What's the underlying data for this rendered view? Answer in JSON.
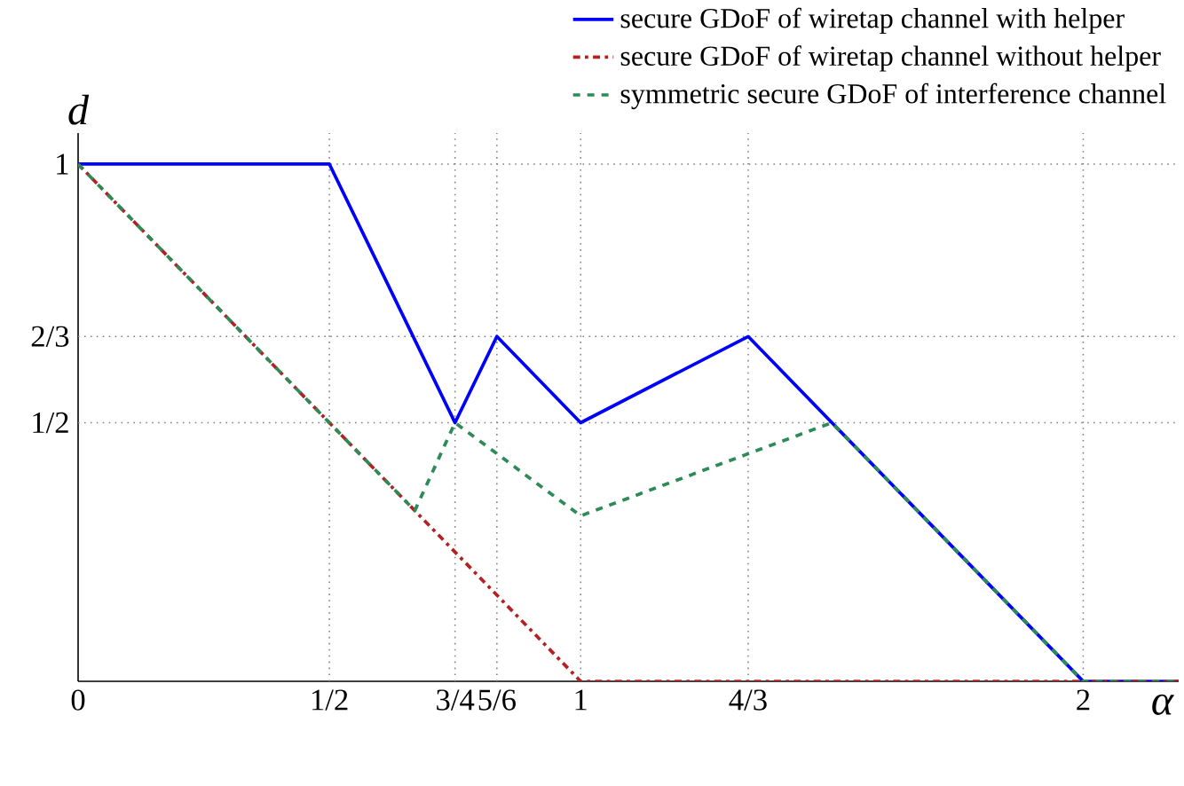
{
  "chart_data": {
    "type": "line",
    "xlabel": "α",
    "ylabel": "d",
    "xlim": [
      0,
      2.19
    ],
    "ylim": [
      0,
      1.06
    ],
    "xticks": [
      0,
      {
        "value": 0.5,
        "label": "1/2"
      },
      {
        "value": 0.75,
        "label": "3/4"
      },
      {
        "value": 0.8333,
        "label": "5/6"
      },
      1,
      {
        "value": 1.3333,
        "label": "4/3"
      },
      2
    ],
    "yticks": [
      {
        "value": 0.5,
        "label": "1/2"
      },
      {
        "value": 0.6667,
        "label": "2/3"
      },
      1
    ],
    "series": [
      {
        "name": "secure GDoF of wiretap channel with helper",
        "color": "#0000ff",
        "line_style": "solid",
        "x": [
          0,
          0.5,
          0.75,
          0.8333,
          1,
          1.3333,
          2,
          2.19
        ],
        "values": [
          1,
          1,
          0.5,
          0.6667,
          0.5,
          0.6667,
          0,
          0
        ]
      },
      {
        "name": "secure GDoF of wiretap channel without helper",
        "color": "#b22222",
        "line_style": "dashdot",
        "x": [
          0,
          1,
          2.19
        ],
        "values": [
          1,
          0,
          0
        ]
      },
      {
        "name": "symmetric secure GDoF of interference channel",
        "color": "#2e8b57",
        "line_style": "dashed",
        "x": [
          0,
          0.67,
          0.75,
          1,
          1.5,
          2,
          2.19
        ],
        "values": [
          1,
          0.33,
          0.5,
          0.32,
          0.5,
          0,
          0
        ]
      }
    ],
    "ref_lines": [
      {
        "axis": "y",
        "value": 1,
        "color": "#808080",
        "line_style": "dotted"
      },
      {
        "axis": "y",
        "value": 0.6667,
        "color": "#808080",
        "line_style": "dotted"
      },
      {
        "axis": "y",
        "value": 0.5,
        "color": "#808080",
        "line_style": "dotted"
      },
      {
        "axis": "x",
        "value": 0.5,
        "color": "#808080",
        "line_style": "dotted"
      },
      {
        "axis": "x",
        "value": 0.75,
        "color": "#808080",
        "line_style": "dotted"
      },
      {
        "axis": "x",
        "value": 0.8333,
        "color": "#808080",
        "line_style": "dotted"
      },
      {
        "axis": "x",
        "value": 1,
        "color": "#808080",
        "line_style": "dotted"
      },
      {
        "axis": "x",
        "value": 1.3333,
        "color": "#808080",
        "line_style": "dotted"
      },
      {
        "axis": "x",
        "value": 2,
        "color": "#808080",
        "line_style": "dotted"
      }
    ],
    "legend": "top right",
    "marker": "none"
  }
}
